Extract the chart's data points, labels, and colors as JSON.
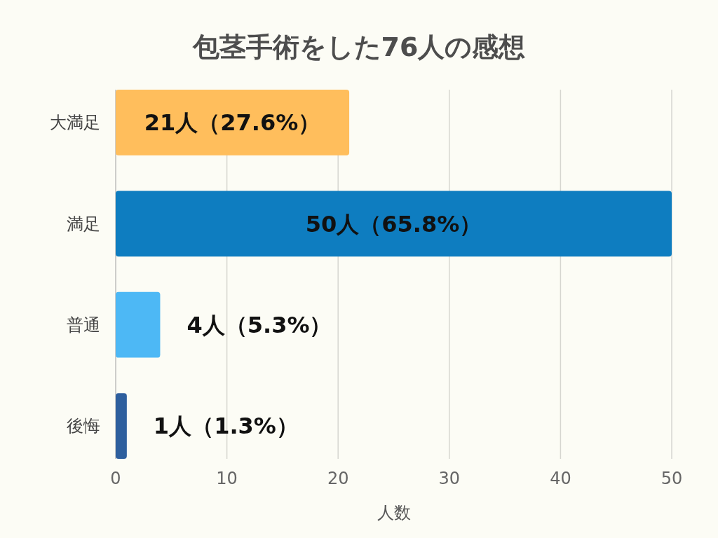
{
  "chart_data": {
    "type": "bar",
    "orientation": "horizontal",
    "title": "包茎手術をした76人の感想",
    "xlabel": "人数",
    "categories": [
      "大満足",
      "満足",
      "普通",
      "後悔"
    ],
    "values": [
      21,
      50,
      4,
      1
    ],
    "colors": [
      "#ffbe5c",
      "#0e7dc0",
      "#4db8f5",
      "#2e5f9e"
    ],
    "value_labels": [
      "21人（27.6%）",
      "50人（65.8%）",
      "4人（5.3%）",
      "1人（1.3%）"
    ],
    "xlim": [
      0,
      50
    ],
    "xticks": [
      0,
      10,
      20,
      30,
      40,
      50
    ],
    "grid": "x"
  }
}
